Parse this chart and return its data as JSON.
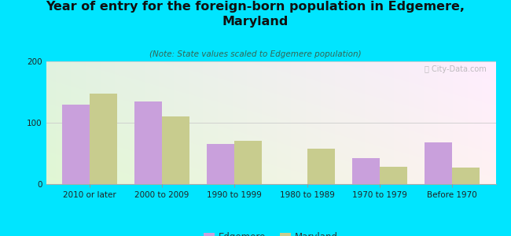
{
  "title": "Year of entry for the foreign-born population in Edgemere,\nMaryland",
  "subtitle": "(Note: State values scaled to Edgemere population)",
  "categories": [
    "2010 or later",
    "2000 to 2009",
    "1990 to 1999",
    "1980 to 1989",
    "1970 to 1979",
    "Before 1970"
  ],
  "edgemere_values": [
    130,
    135,
    65,
    0,
    42,
    68
  ],
  "maryland_values": [
    148,
    110,
    70,
    58,
    28,
    27
  ],
  "edgemere_color": "#c9a0dc",
  "maryland_color": "#c8cc8e",
  "background_color": "#00e5ff",
  "ylim": [
    0,
    200
  ],
  "yticks": [
    0,
    100,
    200
  ],
  "bar_width": 0.38,
  "legend_labels": [
    "Edgemere",
    "Maryland"
  ],
  "watermark": "Ⓜ City-Data.com",
  "title_fontsize": 11.5,
  "subtitle_fontsize": 7.5,
  "tick_fontsize": 7.5,
  "legend_fontsize": 8.5
}
